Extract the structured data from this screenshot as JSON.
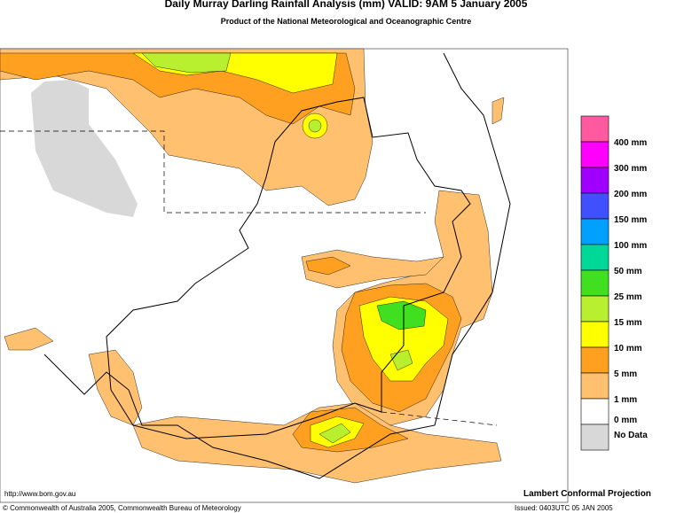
{
  "header": {
    "title": "Daily Murray Darling Rainfall Analysis (mm)  VALID: 9AM  5 January 2005",
    "subtitle": "Product of the National Meteorological and Oceanographic Centre"
  },
  "legend": [
    {
      "label": "400 mm",
      "color": "#ff5aa0"
    },
    {
      "label": "300 mm",
      "color": "#ff00ff"
    },
    {
      "label": "200 mm",
      "color": "#a000ff"
    },
    {
      "label": "150 mm",
      "color": "#4050ff"
    },
    {
      "label": "100 mm",
      "color": "#00a0ff"
    },
    {
      "label": "50 mm",
      "color": "#00d898"
    },
    {
      "label": "25 mm",
      "color": "#40e020"
    },
    {
      "label": "15 mm",
      "color": "#b8f030"
    },
    {
      "label": "10 mm",
      "color": "#ffff00"
    },
    {
      "label": "5 mm",
      "color": "#ffa020"
    },
    {
      "label": "1 mm",
      "color": "#ffc070"
    },
    {
      "label": "0 mm",
      "color": "#ffffff"
    },
    {
      "label": "No Data",
      "color": "#d8d8d8"
    }
  ],
  "footer": {
    "url": "http://www.bom.gov.au",
    "projection": "Lambert Conformal Projection",
    "copyright": "© Commonwealth of Australia 2005, Commonwealth Bureau of Meteorology",
    "issued": "Issued: 0403UTC 05 JAN 2005"
  }
}
